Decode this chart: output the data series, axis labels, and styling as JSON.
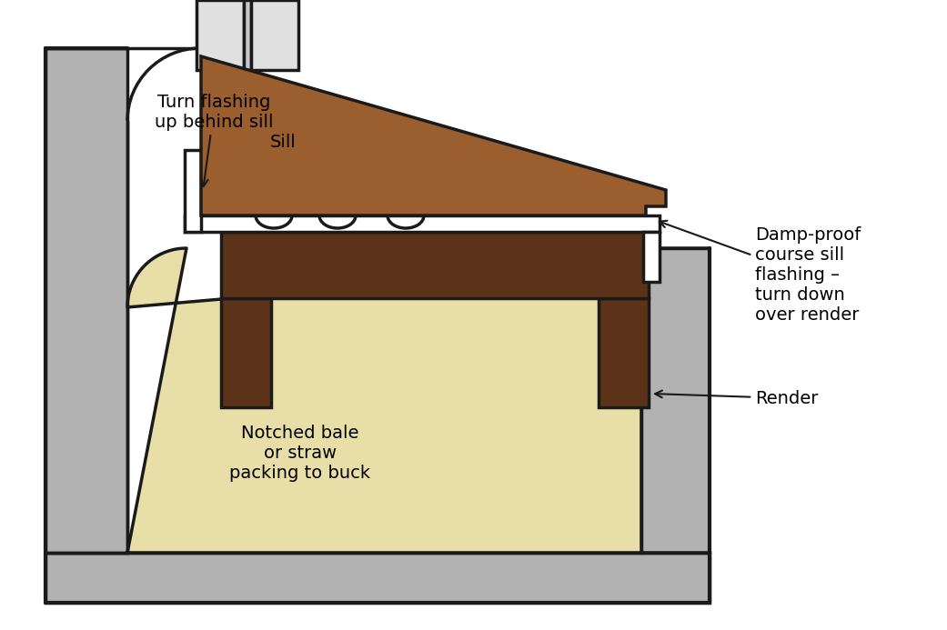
{
  "background": "#ffffff",
  "line_color": "#1a1a1a",
  "lw": 2.5,
  "colors": {
    "gray_wall": "#b2b2b2",
    "straw_bale": "#e8dfa8",
    "wood_sill": "#9b5e2e",
    "wood_dark": "#5c3318",
    "white": "#ffffff",
    "window_light": "#e0e0e0",
    "window_mid": "#c8c8c8"
  },
  "labels": {
    "turn_flashing": "Turn flashing\nup behind sill",
    "sill": "Sill",
    "damp_proof": "Damp-proof\ncourse sill\nflashing –\nturn down\nover render",
    "render": "Render",
    "notched_bale": "Notched bale\nor straw\npacking to buck"
  },
  "figsize": [
    10.41,
    6.93
  ],
  "dpi": 100
}
